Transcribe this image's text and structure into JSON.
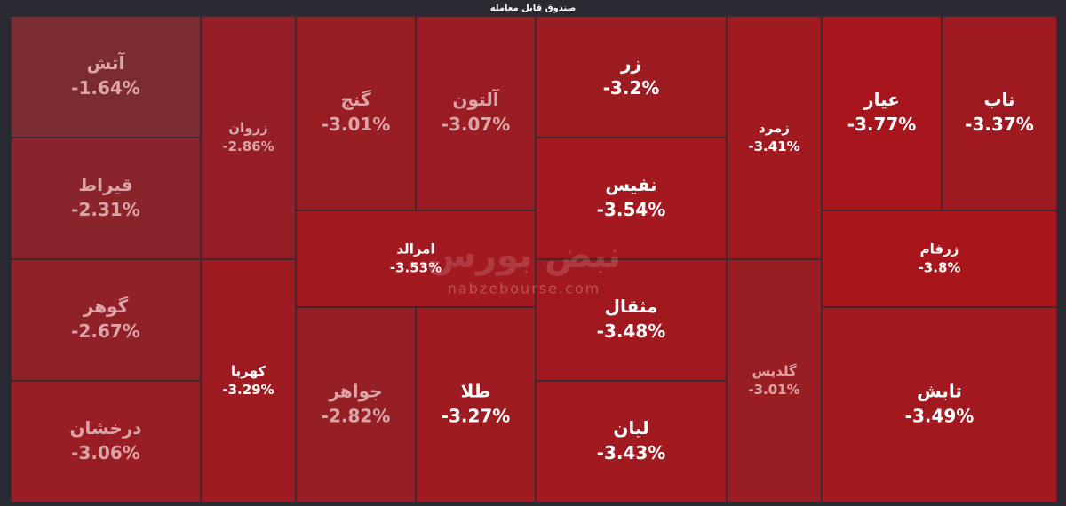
{
  "chart_data": {
    "type": "treemap",
    "title": "صندوق قابل معامله",
    "categories": [
      "آتش",
      "قیراط",
      "گوهر",
      "درخشان",
      "زروان",
      "کهربا",
      "گنج",
      "آلتون",
      "امرالد",
      "جواهر",
      "طلا",
      "زر",
      "نفیس",
      "مثقال",
      "لیان",
      "زمرد",
      "گلدیس",
      "عیار",
      "ناب",
      "زرفام",
      "تابش"
    ],
    "values": [
      -1.64,
      -2.31,
      -2.67,
      -3.06,
      -2.86,
      -3.29,
      -3.01,
      -3.07,
      -3.53,
      -2.82,
      -3.27,
      -3.2,
      -3.54,
      -3.48,
      -3.43,
      -3.41,
      -3.01,
      -3.77,
      -3.37,
      -3.8,
      -3.49
    ],
    "value_labels": [
      "-1.64%",
      "-2.31%",
      "-2.67%",
      "-3.06%",
      "-2.86%",
      "-3.29%",
      "-3.01%",
      "-3.07%",
      "-3.53%",
      "-2.82%",
      "-3.27%",
      "-3.2%",
      "-3.54%",
      "-3.48%",
      "-3.43%",
      "-3.41%",
      "-3.01%",
      "-3.77%",
      "-3.37%",
      "-3.8%",
      "-3.49%"
    ],
    "colors": [
      "#7b2b32",
      "#a8161c"
    ],
    "watermark": {
      "logo": "نبض بورس",
      "site": "nabzebourse.com"
    }
  }
}
